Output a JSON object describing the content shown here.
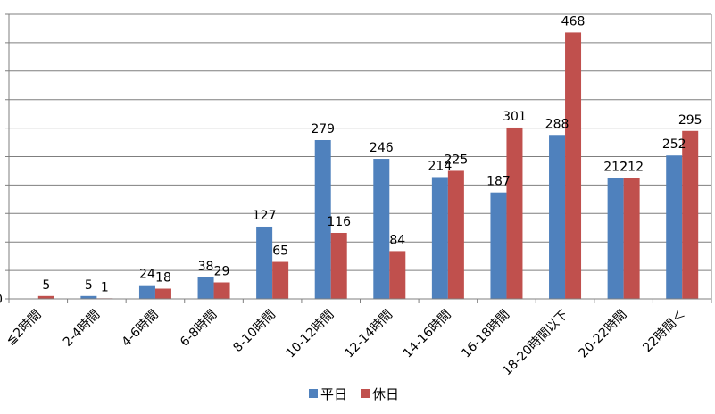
{
  "chart_data": {
    "type": "bar",
    "categories": [
      "≦2時間",
      "2-4時間",
      "4-6時間",
      "6-8時間",
      "8-10時間",
      "10-12時間",
      "12-14時間",
      "14-16時間",
      "16-18時間",
      "18-20時間以下",
      "20-22時間",
      "22時間＜"
    ],
    "series": [
      {
        "name": "平日",
        "values": [
          0,
          5,
          24,
          38,
          127,
          279,
          246,
          214,
          187,
          288,
          212,
          252
        ],
        "data_labels": [
          "",
          "5",
          "24",
          "38",
          "127",
          "279",
          "246",
          "214",
          "187",
          "288",
          "212",
          "252"
        ],
        "color": "#4f81bd"
      },
      {
        "name": "休日",
        "values": [
          5,
          1,
          18,
          29,
          65,
          116,
          84,
          225,
          301,
          468,
          212,
          295
        ],
        "data_labels": [
          "5",
          "1",
          "18",
          "29",
          "65",
          "116",
          "84",
          "225",
          "301",
          "468",
          "212",
          "295"
        ],
        "color": "#c0504d"
      }
    ],
    "ylim": [
      0,
      500
    ],
    "y_gridlines": [
      0,
      50,
      100,
      150,
      200,
      250,
      300,
      350,
      400,
      450,
      500
    ],
    "y_tick_label_visible": "0",
    "grid": true,
    "legend_position": "bottom",
    "title": "",
    "xlabel": "",
    "ylabel": ""
  }
}
